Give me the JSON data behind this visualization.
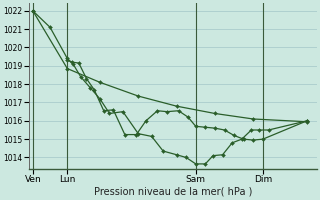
{
  "title": "Pression niveau de la mer( hPa )",
  "bg_color": "#cce8e0",
  "grid_color": "#aacccc",
  "line_color": "#2a5e2a",
  "ylim": [
    1013.4,
    1022.4
  ],
  "yticks": [
    1014,
    1015,
    1016,
    1017,
    1018,
    1019,
    1020,
    1021,
    1022
  ],
  "xtick_labels": [
    "Ven",
    "Lun",
    "Sam",
    "Dim"
  ],
  "xtick_positions": [
    0,
    1.8,
    8.5,
    12.0
  ],
  "vlines": [
    0.0,
    1.8,
    8.5,
    12.0
  ],
  "xlim": [
    -0.2,
    14.8
  ],
  "series1_x": [
    0.0,
    0.9,
    1.8,
    2.1,
    2.5,
    3.0,
    3.5,
    4.0,
    4.7,
    5.5,
    6.2,
    6.8,
    7.5,
    8.0,
    8.5,
    9.0,
    9.4,
    9.9,
    10.4,
    10.9,
    11.4,
    11.8,
    12.3,
    14.3
  ],
  "series1_y": [
    1022.0,
    1021.1,
    1019.4,
    1019.1,
    1018.4,
    1017.8,
    1017.2,
    1016.4,
    1016.5,
    1015.3,
    1015.15,
    1014.35,
    1014.15,
    1014.0,
    1013.65,
    1013.65,
    1014.1,
    1014.15,
    1014.8,
    1015.0,
    1015.5,
    1015.5,
    1015.5,
    1016.0
  ],
  "series2_x": [
    1.8,
    2.05,
    2.4,
    2.8,
    3.2,
    3.7,
    4.2,
    4.8,
    5.4,
    5.9,
    6.5,
    7.0,
    7.6,
    8.1,
    8.5,
    9.0,
    9.5,
    10.0,
    10.5,
    11.0,
    11.5,
    12.0,
    14.3
  ],
  "series2_y": [
    1019.3,
    1019.2,
    1019.15,
    1018.3,
    1017.7,
    1016.55,
    1016.6,
    1015.25,
    1015.25,
    1016.0,
    1016.55,
    1016.5,
    1016.55,
    1016.2,
    1015.7,
    1015.65,
    1015.6,
    1015.5,
    1015.2,
    1015.0,
    1014.95,
    1015.0,
    1016.0
  ],
  "series3_x": [
    0.0,
    1.8,
    3.5,
    5.5,
    7.5,
    9.5,
    11.5,
    14.3
  ],
  "series3_y": [
    1022.0,
    1018.85,
    1018.1,
    1017.35,
    1016.8,
    1016.4,
    1016.1,
    1015.95
  ]
}
